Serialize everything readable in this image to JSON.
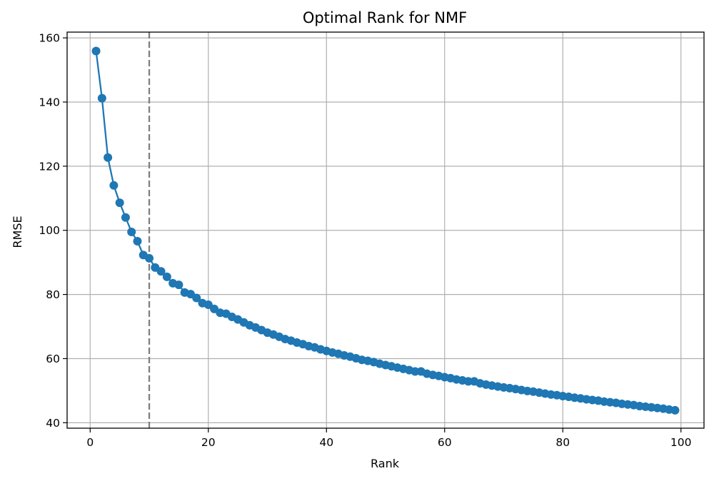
{
  "chart_data": {
    "type": "line",
    "title": "Optimal Rank for NMF",
    "xlabel": "Rank",
    "ylabel": "RMSE",
    "xlim": [
      -3.9,
      103.9
    ],
    "ylim": [
      38.3,
      161.8
    ],
    "xticks": [
      0,
      20,
      40,
      60,
      80,
      100
    ],
    "yticks": [
      40,
      60,
      80,
      100,
      120,
      140,
      160
    ],
    "grid": true,
    "reference_line": {
      "x": 10,
      "style": "dashed",
      "color": "#7f7f7f"
    },
    "series": [
      {
        "color": "#1f77b4",
        "marker": "circle",
        "x": [
          1,
          2,
          3,
          4,
          5,
          6,
          7,
          8,
          9,
          10,
          11,
          12,
          13,
          14,
          15,
          16,
          17,
          18,
          19,
          20,
          21,
          22,
          23,
          24,
          25,
          26,
          27,
          28,
          29,
          30,
          31,
          32,
          33,
          34,
          35,
          36,
          37,
          38,
          39,
          40,
          41,
          42,
          43,
          44,
          45,
          46,
          47,
          48,
          49,
          50,
          51,
          52,
          53,
          54,
          55,
          56,
          57,
          58,
          59,
          60,
          61,
          62,
          63,
          64,
          65,
          66,
          67,
          68,
          69,
          70,
          71,
          72,
          73,
          74,
          75,
          76,
          77,
          78,
          79,
          80,
          81,
          82,
          83,
          84,
          85,
          86,
          87,
          88,
          89,
          90,
          91,
          92,
          93,
          94,
          95,
          96,
          97,
          98,
          99
        ],
        "values": [
          155.9,
          141.2,
          122.7,
          114.0,
          108.6,
          104.0,
          99.5,
          96.6,
          92.3,
          91.3,
          88.4,
          87.2,
          85.5,
          83.5,
          83.0,
          80.6,
          80.1,
          78.9,
          77.3,
          76.8,
          75.5,
          74.3,
          74.0,
          73.0,
          72.2,
          71.3,
          70.4,
          69.7,
          68.9,
          68.1,
          67.5,
          66.8,
          66.1,
          65.6,
          65.0,
          64.5,
          63.9,
          63.5,
          62.9,
          62.4,
          61.9,
          61.5,
          61.0,
          60.6,
          60.1,
          59.6,
          59.3,
          58.9,
          58.4,
          58.0,
          57.6,
          57.2,
          56.8,
          56.4,
          56.0,
          56.0,
          55.3,
          54.9,
          54.6,
          54.2,
          53.9,
          53.5,
          53.2,
          52.9,
          52.9,
          52.3,
          51.9,
          51.6,
          51.3,
          51.0,
          50.8,
          50.5,
          50.2,
          49.9,
          49.7,
          49.4,
          49.1,
          48.8,
          48.6,
          48.3,
          48.1,
          47.8,
          47.6,
          47.3,
          47.1,
          46.9,
          46.6,
          46.4,
          46.2,
          45.9,
          45.7,
          45.5,
          45.2,
          45.0,
          44.8,
          44.6,
          44.4,
          44.1,
          43.9
        ]
      }
    ]
  }
}
